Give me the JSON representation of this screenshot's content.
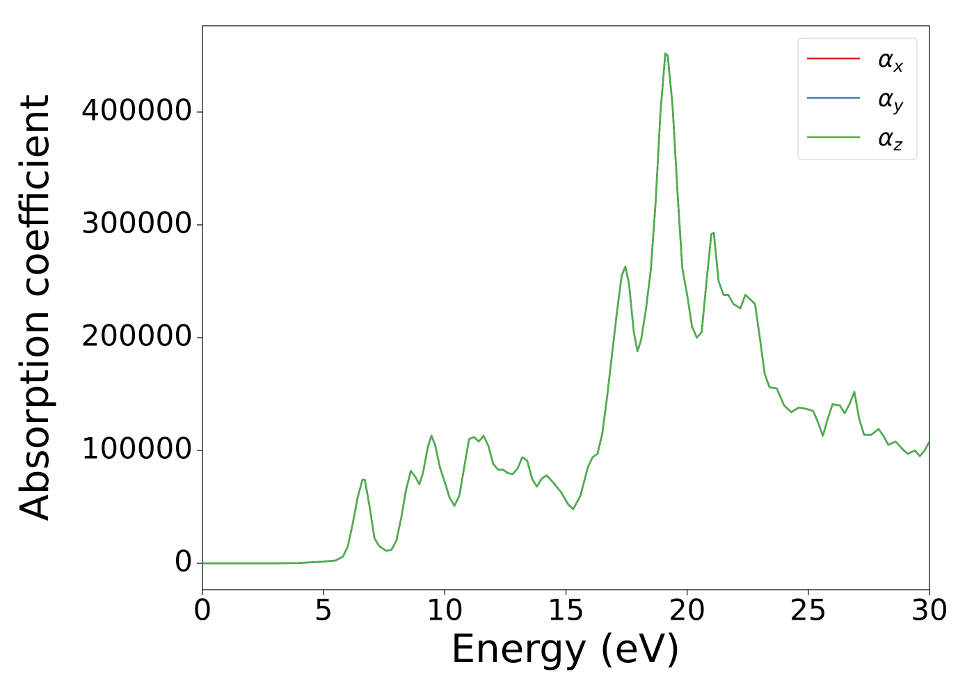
{
  "chart_data": {
    "type": "line",
    "xlabel": "Energy (eV)",
    "ylabel": "Absorption coefficient",
    "x": [
      0,
      1,
      2,
      3,
      4,
      5,
      5.5,
      5.8,
      6.0,
      6.2,
      6.4,
      6.6,
      6.7,
      6.9,
      7.1,
      7.3,
      7.6,
      7.8,
      8.0,
      8.2,
      8.4,
      8.6,
      8.8,
      8.95,
      9.1,
      9.3,
      9.45,
      9.6,
      9.8,
      10.0,
      10.2,
      10.4,
      10.6,
      10.8,
      11.0,
      11.2,
      11.4,
      11.6,
      11.8,
      12.0,
      12.2,
      12.4,
      12.6,
      12.8,
      13.0,
      13.2,
      13.4,
      13.6,
      13.8,
      14.0,
      14.2,
      14.5,
      14.8,
      15.1,
      15.3,
      15.6,
      15.9,
      16.1,
      16.3,
      16.5,
      16.7,
      16.9,
      17.1,
      17.3,
      17.45,
      17.6,
      17.8,
      17.95,
      18.1,
      18.3,
      18.5,
      18.7,
      18.9,
      19.1,
      19.2,
      19.4,
      19.6,
      19.8,
      20.0,
      20.2,
      20.4,
      20.6,
      20.8,
      21.0,
      21.1,
      21.3,
      21.5,
      21.7,
      21.9,
      22.2,
      22.4,
      22.6,
      22.8,
      23.0,
      23.2,
      23.4,
      23.7,
      24.0,
      24.3,
      24.6,
      24.9,
      25.2,
      25.4,
      25.6,
      25.8,
      26.0,
      26.3,
      26.5,
      26.7,
      26.9,
      27.1,
      27.3,
      27.6,
      27.9,
      28.1,
      28.3,
      28.6,
      28.9,
      29.1,
      29.4,
      29.6,
      29.8,
      30.0
    ],
    "series": [
      {
        "name": "αx",
        "color": "#e41a1c",
        "values": [
          0,
          0,
          0,
          0,
          300,
          1500,
          2500,
          6000,
          15000,
          35000,
          58000,
          74000,
          74000,
          50000,
          22000,
          15000,
          11000,
          12000,
          20000,
          40000,
          65000,
          82000,
          76000,
          70000,
          80000,
          103000,
          113000,
          105000,
          85000,
          72000,
          58000,
          51000,
          60000,
          85000,
          110000,
          112000,
          108000,
          113000,
          104000,
          88000,
          83000,
          83000,
          80000,
          79000,
          84000,
          94000,
          91000,
          75000,
          68000,
          75000,
          78000,
          71000,
          63000,
          52000,
          48000,
          60000,
          85000,
          94000,
          97000,
          115000,
          148000,
          185000,
          222000,
          255000,
          263000,
          248000,
          205000,
          188000,
          198000,
          225000,
          260000,
          320000,
          400000,
          452000,
          450000,
          405000,
          330000,
          262000,
          238000,
          210000,
          200000,
          205000,
          250000,
          292000,
          293000,
          250000,
          238000,
          238000,
          230000,
          226000,
          238000,
          234000,
          230000,
          200000,
          168000,
          156000,
          155000,
          140000,
          134000,
          138000,
          137000,
          135000,
          125000,
          113000,
          128000,
          141000,
          140000,
          133000,
          141000,
          152000,
          128000,
          114000,
          114000,
          119000,
          113000,
          105000,
          108000,
          101000,
          97000,
          100000,
          95000,
          100000,
          108000
        ]
      },
      {
        "name": "αy",
        "color": "#377eb8",
        "values": [
          0,
          0,
          0,
          0,
          300,
          1500,
          2500,
          6000,
          15000,
          35000,
          58000,
          74000,
          74000,
          50000,
          22000,
          15000,
          11000,
          12000,
          20000,
          40000,
          65000,
          82000,
          76000,
          70000,
          80000,
          103000,
          113000,
          105000,
          85000,
          72000,
          58000,
          51000,
          60000,
          85000,
          110000,
          112000,
          108000,
          113000,
          104000,
          88000,
          83000,
          83000,
          80000,
          79000,
          84000,
          94000,
          91000,
          75000,
          68000,
          75000,
          78000,
          71000,
          63000,
          52000,
          48000,
          60000,
          85000,
          94000,
          97000,
          115000,
          148000,
          185000,
          222000,
          255000,
          263000,
          248000,
          205000,
          188000,
          198000,
          225000,
          260000,
          320000,
          400000,
          452000,
          450000,
          405000,
          330000,
          262000,
          238000,
          210000,
          200000,
          205000,
          250000,
          292000,
          293000,
          250000,
          238000,
          238000,
          230000,
          226000,
          238000,
          234000,
          230000,
          200000,
          168000,
          156000,
          155000,
          140000,
          134000,
          138000,
          137000,
          135000,
          125000,
          113000,
          128000,
          141000,
          140000,
          133000,
          141000,
          152000,
          128000,
          114000,
          114000,
          119000,
          113000,
          105000,
          108000,
          101000,
          97000,
          100000,
          95000,
          100000,
          108000
        ]
      },
      {
        "name": "αz",
        "color": "#4daf4a",
        "values": [
          0,
          0,
          0,
          0,
          300,
          1500,
          2500,
          6000,
          15000,
          35000,
          58000,
          74000,
          74000,
          50000,
          22000,
          15000,
          11000,
          12000,
          20000,
          40000,
          65000,
          82000,
          76000,
          70000,
          80000,
          103000,
          113000,
          105000,
          85000,
          72000,
          58000,
          51000,
          60000,
          85000,
          110000,
          112000,
          108000,
          113000,
          104000,
          88000,
          83000,
          83000,
          80000,
          79000,
          84000,
          94000,
          91000,
          75000,
          68000,
          75000,
          78000,
          71000,
          63000,
          52000,
          48000,
          60000,
          85000,
          94000,
          97000,
          115000,
          148000,
          185000,
          222000,
          255000,
          263000,
          248000,
          205000,
          188000,
          198000,
          225000,
          260000,
          320000,
          400000,
          452000,
          450000,
          405000,
          330000,
          262000,
          238000,
          210000,
          200000,
          205000,
          250000,
          292000,
          293000,
          250000,
          238000,
          238000,
          230000,
          226000,
          238000,
          234000,
          230000,
          200000,
          168000,
          156000,
          155000,
          140000,
          134000,
          138000,
          137000,
          135000,
          125000,
          113000,
          128000,
          141000,
          140000,
          133000,
          141000,
          152000,
          128000,
          114000,
          114000,
          119000,
          113000,
          105000,
          108000,
          101000,
          97000,
          100000,
          95000,
          100000,
          108000
        ]
      }
    ],
    "xlim": [
      0,
      30
    ],
    "xticks": [
      0,
      5,
      10,
      15,
      20,
      25,
      30
    ],
    "ylim": [
      -23400,
      476500
    ],
    "yticks": [
      0,
      100000,
      200000,
      300000,
      400000
    ],
    "grid": false,
    "legend": "upper right"
  }
}
